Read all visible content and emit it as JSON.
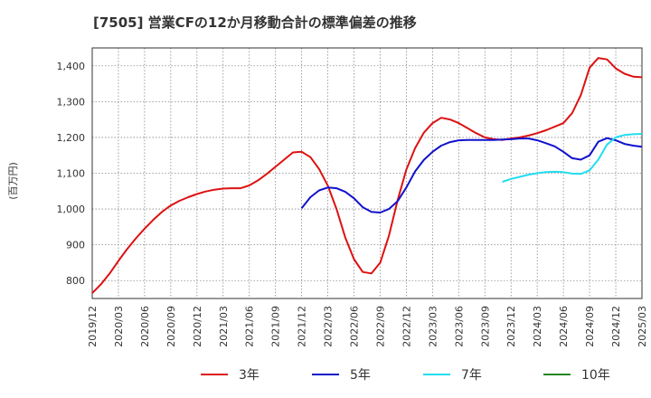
{
  "chart_data": {
    "type": "line",
    "title": "[7505]  営業CFの12か月移動合計の標準偏差の推移",
    "ylabel": "(百万円)",
    "xlabel": "",
    "ylim": [
      750,
      1450
    ],
    "yticks": [
      800,
      900,
      1000,
      1100,
      1200,
      1300,
      1400
    ],
    "ytick_labels": [
      "800",
      "900",
      "1,000",
      "1,100",
      "1,200",
      "1,300",
      "1,400"
    ],
    "xlim": [
      "2019-12",
      "2025-03"
    ],
    "xtick_labels": [
      "2019/12",
      "2020/03",
      "2020/06",
      "2020/09",
      "2020/12",
      "2021/03",
      "2021/06",
      "2021/09",
      "2021/12",
      "2022/03",
      "2022/06",
      "2022/09",
      "2022/12",
      "2023/03",
      "2023/06",
      "2023/09",
      "2023/12",
      "2024/03",
      "2024/06",
      "2024/09",
      "2024/12",
      "2025/03"
    ],
    "grid": true,
    "legend_position": "bottom",
    "series": [
      {
        "name": "3年",
        "color": "#dd1111",
        "points": [
          [
            "2019-12",
            765
          ],
          [
            "2020-01",
            790
          ],
          [
            "2020-02",
            820
          ],
          [
            "2020-03",
            855
          ],
          [
            "2020-04",
            888
          ],
          [
            "2020-05",
            918
          ],
          [
            "2020-06",
            945
          ],
          [
            "2020-07",
            970
          ],
          [
            "2020-08",
            992
          ],
          [
            "2020-09",
            1010
          ],
          [
            "2020-10",
            1023
          ],
          [
            "2020-11",
            1033
          ],
          [
            "2020-12",
            1042
          ],
          [
            "2021-01",
            1049
          ],
          [
            "2021-02",
            1054
          ],
          [
            "2021-03",
            1057
          ],
          [
            "2021-04",
            1058
          ],
          [
            "2021-05",
            1058
          ],
          [
            "2021-06",
            1066
          ],
          [
            "2021-07",
            1080
          ],
          [
            "2021-08",
            1098
          ],
          [
            "2021-09",
            1118
          ],
          [
            "2021-10",
            1138
          ],
          [
            "2021-11",
            1158
          ],
          [
            "2021-12",
            1160
          ],
          [
            "2022-01",
            1145
          ],
          [
            "2022-02",
            1112
          ],
          [
            "2022-03",
            1065
          ],
          [
            "2022-04",
            1000
          ],
          [
            "2022-05",
            920
          ],
          [
            "2022-06",
            860
          ],
          [
            "2022-07",
            824
          ],
          [
            "2022-08",
            820
          ],
          [
            "2022-09",
            850
          ],
          [
            "2022-10",
            925
          ],
          [
            "2022-11",
            1025
          ],
          [
            "2022-12",
            1110
          ],
          [
            "2023-01",
            1170
          ],
          [
            "2023-02",
            1213
          ],
          [
            "2023-03",
            1240
          ],
          [
            "2023-04",
            1255
          ],
          [
            "2023-05",
            1250
          ],
          [
            "2023-06",
            1240
          ],
          [
            "2023-07",
            1226
          ],
          [
            "2023-08",
            1212
          ],
          [
            "2023-09",
            1200
          ],
          [
            "2023-10",
            1195
          ],
          [
            "2023-11",
            1193
          ],
          [
            "2023-12",
            1197
          ],
          [
            "2024-01",
            1200
          ],
          [
            "2024-02",
            1205
          ],
          [
            "2024-03",
            1212
          ],
          [
            "2024-04",
            1220
          ],
          [
            "2024-05",
            1230
          ],
          [
            "2024-06",
            1240
          ],
          [
            "2024-07",
            1268
          ],
          [
            "2024-08",
            1318
          ],
          [
            "2024-09",
            1395
          ],
          [
            "2024-10",
            1422
          ],
          [
            "2024-11",
            1418
          ],
          [
            "2024-12",
            1393
          ],
          [
            "2025-01",
            1378
          ],
          [
            "2025-02",
            1370
          ],
          [
            "2025-03",
            1368
          ]
        ]
      },
      {
        "name": "5年",
        "color": "#1111cc",
        "points": [
          [
            "2021-12",
            1002
          ],
          [
            "2022-01",
            1033
          ],
          [
            "2022-02",
            1052
          ],
          [
            "2022-03",
            1060
          ],
          [
            "2022-04",
            1058
          ],
          [
            "2022-05",
            1048
          ],
          [
            "2022-06",
            1030
          ],
          [
            "2022-07",
            1005
          ],
          [
            "2022-08",
            992
          ],
          [
            "2022-09",
            990
          ],
          [
            "2022-10",
            1000
          ],
          [
            "2022-11",
            1022
          ],
          [
            "2022-12",
            1060
          ],
          [
            "2023-01",
            1105
          ],
          [
            "2023-02",
            1137
          ],
          [
            "2023-03",
            1160
          ],
          [
            "2023-04",
            1177
          ],
          [
            "2023-05",
            1187
          ],
          [
            "2023-06",
            1192
          ],
          [
            "2023-07",
            1193
          ],
          [
            "2023-08",
            1193
          ],
          [
            "2023-09",
            1193
          ],
          [
            "2023-10",
            1193
          ],
          [
            "2023-11",
            1194
          ],
          [
            "2023-12",
            1195
          ],
          [
            "2024-01",
            1197
          ],
          [
            "2024-02",
            1197
          ],
          [
            "2024-03",
            1192
          ],
          [
            "2024-04",
            1184
          ],
          [
            "2024-05",
            1175
          ],
          [
            "2024-06",
            1160
          ],
          [
            "2024-07",
            1142
          ],
          [
            "2024-08",
            1138
          ],
          [
            "2024-09",
            1150
          ],
          [
            "2024-10",
            1188
          ],
          [
            "2024-11",
            1198
          ],
          [
            "2024-12",
            1192
          ],
          [
            "2025-01",
            1182
          ],
          [
            "2025-02",
            1177
          ],
          [
            "2025-03",
            1174
          ],
          [
            "2025-04",
            1174
          ],
          [
            "2025-05",
            1174
          ]
        ]
      },
      {
        "name": "7年",
        "color": "#22ddee",
        "points": [
          [
            "2023-11",
            1076
          ],
          [
            "2023-12",
            1084
          ],
          [
            "2024-01",
            1090
          ],
          [
            "2024-02",
            1096
          ],
          [
            "2024-03",
            1100
          ],
          [
            "2024-04",
            1103
          ],
          [
            "2024-05",
            1104
          ],
          [
            "2024-06",
            1103
          ],
          [
            "2024-07",
            1099
          ],
          [
            "2024-08",
            1098
          ],
          [
            "2024-09",
            1108
          ],
          [
            "2024-10",
            1138
          ],
          [
            "2024-11",
            1180
          ],
          [
            "2024-12",
            1200
          ],
          [
            "2025-01",
            1207
          ],
          [
            "2025-02",
            1209
          ],
          [
            "2025-03",
            1210
          ],
          [
            "2025-04",
            1211
          ],
          [
            "2025-05",
            1213
          ]
        ]
      },
      {
        "name": "10年",
        "color": "#228822",
        "points": []
      }
    ]
  }
}
